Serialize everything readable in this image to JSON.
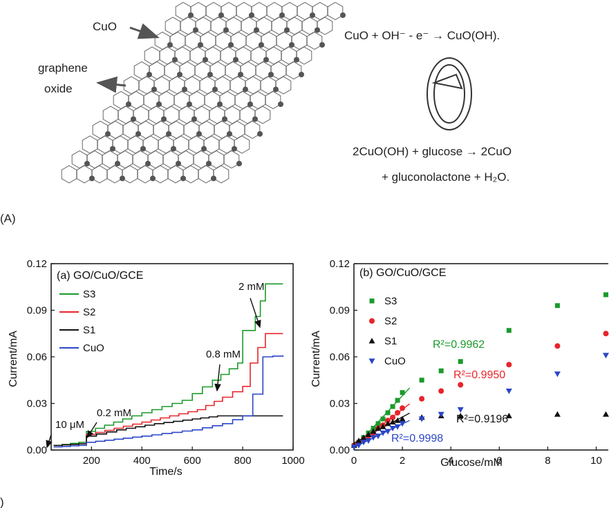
{
  "schematic": {
    "label_cuo": "CuO",
    "label_graphene_line1": "graphene",
    "label_graphene_line2": "oxide",
    "reaction1": "CuO + OH⁻ - e⁻ → CuO(OH).",
    "reaction2_line1": "2CuO(OH) + glucose → 2CuO",
    "reaction2_line2": "+ gluconolactone + H₂O.",
    "panel_label": "(A)",
    "bottom_panel_label": ")"
  },
  "colors": {
    "S3": "#1a9a2a",
    "S2": "#e8242a",
    "S1": "#111111",
    "CuO": "#2a46c8"
  },
  "chart_data": [
    {
      "type": "line",
      "panel": "(a)",
      "title": "GO/CuO/GCE",
      "xlabel": "Time/s",
      "ylabel": "Current/mA",
      "xlim": [
        40,
        1000
      ],
      "ylim": [
        0.0,
        0.12
      ],
      "xticks": [
        "200",
        "400",
        "600",
        "800",
        "1000"
      ],
      "yticks": [
        "0.00",
        "0.03",
        "0.06",
        "0.09",
        "0.12"
      ],
      "legend": [
        "S3",
        "S2",
        "S1",
        "CuO"
      ],
      "legend_position": "top-left",
      "annotations": [
        "10 μM",
        "0.2 mM",
        "0.8 mM",
        "2 mM"
      ],
      "series": [
        {
          "name": "S3",
          "x": [
            50,
            150,
            180,
            360,
            560,
            680,
            780,
            800,
            850,
            870,
            890,
            960
          ],
          "y": [
            0.003,
            0.005,
            0.012,
            0.022,
            0.032,
            0.045,
            0.056,
            0.077,
            0.086,
            0.096,
            0.107,
            0.107
          ]
        },
        {
          "name": "S2",
          "x": [
            50,
            150,
            180,
            400,
            620,
            720,
            800,
            830,
            860,
            890,
            960
          ],
          "y": [
            0.003,
            0.004,
            0.01,
            0.018,
            0.026,
            0.034,
            0.041,
            0.056,
            0.066,
            0.075,
            0.075
          ]
        },
        {
          "name": "S1",
          "x": [
            50,
            150,
            180,
            300,
            450,
            600,
            700,
            960
          ],
          "y": [
            0.003,
            0.004,
            0.009,
            0.013,
            0.017,
            0.02,
            0.022,
            0.022
          ]
        },
        {
          "name": "CuO",
          "x": [
            50,
            150,
            180,
            400,
            600,
            720,
            800,
            840,
            880,
            960
          ],
          "y": [
            0.002,
            0.003,
            0.005,
            0.009,
            0.013,
            0.017,
            0.022,
            0.036,
            0.06,
            0.061
          ]
        }
      ]
    },
    {
      "type": "scatter",
      "panel": "(b)",
      "title": "GO/CuO/GCE",
      "xlabel": "Glucose/mM",
      "ylabel": "Current/mA",
      "xlim": [
        0,
        10.5
      ],
      "ylim": [
        0.0,
        0.12
      ],
      "xticks": [
        "0",
        "2",
        "4",
        "6",
        "8",
        "10"
      ],
      "yticks": [
        "0.00",
        "0.03",
        "0.06",
        "0.09",
        "0.12"
      ],
      "legend": [
        "S3",
        "S2",
        "S1",
        "CuO"
      ],
      "legend_position": "top-left",
      "r_squared": [
        {
          "series": "S3",
          "label": "R²=0.9962"
        },
        {
          "series": "S2",
          "label": "R²=0.9950"
        },
        {
          "series": "S1",
          "label": "R²=0.9196"
        },
        {
          "series": "CuO",
          "label": "R²=0.9998"
        }
      ],
      "series": [
        {
          "name": "S3",
          "marker": "square",
          "x": [
            0.01,
            0.2,
            0.4,
            0.6,
            0.8,
            1.0,
            1.2,
            1.4,
            1.6,
            1.8,
            2.0,
            2.8,
            3.6,
            4.4,
            6.4,
            8.4,
            10.4
          ],
          "y": [
            0.003,
            0.005,
            0.008,
            0.011,
            0.014,
            0.017,
            0.02,
            0.024,
            0.028,
            0.032,
            0.037,
            0.045,
            0.051,
            0.057,
            0.077,
            0.093,
            0.1
          ]
        },
        {
          "name": "S2",
          "marker": "circle",
          "x": [
            0.01,
            0.2,
            0.4,
            0.6,
            0.8,
            1.0,
            1.2,
            1.4,
            1.6,
            1.8,
            2.0,
            2.8,
            3.6,
            4.4,
            6.4,
            8.4,
            10.4
          ],
          "y": [
            0.003,
            0.005,
            0.007,
            0.009,
            0.011,
            0.014,
            0.016,
            0.019,
            0.021,
            0.024,
            0.027,
            0.033,
            0.038,
            0.042,
            0.055,
            0.067,
            0.075
          ]
        },
        {
          "name": "S1",
          "marker": "triangle-up",
          "x": [
            0.01,
            0.2,
            0.4,
            0.6,
            0.8,
            1.0,
            1.2,
            1.4,
            1.6,
            1.8,
            2.0,
            2.8,
            3.6,
            4.4,
            6.4,
            8.4,
            10.4
          ],
          "y": [
            0.003,
            0.006,
            0.008,
            0.01,
            0.012,
            0.014,
            0.015,
            0.017,
            0.018,
            0.019,
            0.02,
            0.021,
            0.022,
            0.022,
            0.022,
            0.023,
            0.023
          ]
        },
        {
          "name": "CuO",
          "marker": "triangle-down",
          "x": [
            0.01,
            0.2,
            0.4,
            0.6,
            0.8,
            1.0,
            1.2,
            1.4,
            1.6,
            1.8,
            2.0,
            2.8,
            3.6,
            4.4,
            6.4,
            8.4,
            10.4
          ],
          "y": [
            0.002,
            0.003,
            0.005,
            0.006,
            0.008,
            0.009,
            0.011,
            0.012,
            0.014,
            0.015,
            0.017,
            0.02,
            0.023,
            0.026,
            0.038,
            0.049,
            0.061
          ]
        }
      ]
    }
  ]
}
